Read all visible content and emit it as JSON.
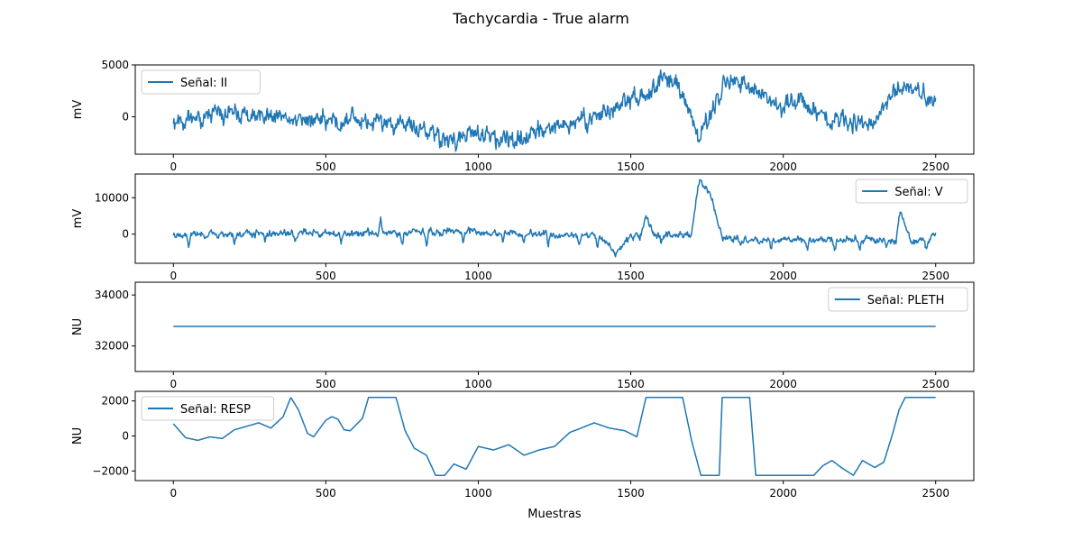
{
  "chart_data": {
    "title": "Tachycardia - True alarm",
    "xlabel": "Muestras",
    "panels": [
      {
        "type": "line",
        "ylabel": "mV",
        "legend": "Señal: II",
        "legend_loc": "upper-left",
        "xlim": [
          -125,
          2625
        ],
        "ylim": [
          -3600,
          5000
        ],
        "xticks": [
          0,
          500,
          1000,
          1500,
          2000,
          2500
        ],
        "yticks": [
          0,
          5000
        ],
        "keypoints": [
          [
            0,
            -300
          ],
          [
            100,
            -100
          ],
          [
            200,
            300
          ],
          [
            300,
            -200
          ],
          [
            400,
            -150
          ],
          [
            500,
            -350
          ],
          [
            600,
            -200
          ],
          [
            700,
            -500
          ],
          [
            800,
            -1200
          ],
          [
            900,
            -2200
          ],
          [
            1000,
            -1700
          ],
          [
            1100,
            -2400
          ],
          [
            1200,
            -1300
          ],
          [
            1300,
            -700
          ],
          [
            1400,
            300
          ],
          [
            1450,
            800
          ],
          [
            1500,
            1500
          ],
          [
            1550,
            2600
          ],
          [
            1600,
            3400
          ],
          [
            1650,
            3700
          ],
          [
            1680,
            1200
          ],
          [
            1720,
            -1800
          ],
          [
            1750,
            -600
          ],
          [
            1800,
            3200
          ],
          [
            1850,
            3300
          ],
          [
            1900,
            2700
          ],
          [
            1960,
            1100
          ],
          [
            2000,
            1100
          ],
          [
            2050,
            1800
          ],
          [
            2100,
            800
          ],
          [
            2150,
            -300
          ],
          [
            2200,
            -500
          ],
          [
            2250,
            -200
          ],
          [
            2300,
            -1000
          ],
          [
            2350,
            2000
          ],
          [
            2400,
            3000
          ],
          [
            2450,
            2500
          ],
          [
            2500,
            2000
          ]
        ],
        "noise_amp": 1200,
        "noise_seed": 11
      },
      {
        "type": "line",
        "ylabel": "mV",
        "legend": "Señal: V",
        "legend_loc": "upper-right",
        "xlim": [
          -125,
          2625
        ],
        "ylim": [
          -8000,
          16500
        ],
        "xticks": [
          0,
          500,
          1000,
          1500,
          2000,
          2500
        ],
        "yticks": [
          0,
          10000
        ],
        "keypoints": [
          [
            0,
            0
          ],
          [
            500,
            200
          ],
          [
            690,
            300
          ],
          [
            1000,
            600
          ],
          [
            1300,
            -200
          ],
          [
            1400,
            -300
          ],
          [
            1450,
            -5200
          ],
          [
            1500,
            -300
          ],
          [
            1530,
            -500
          ],
          [
            1550,
            4500
          ],
          [
            1580,
            -200
          ],
          [
            1700,
            -400
          ],
          [
            1725,
            15000
          ],
          [
            1760,
            11000
          ],
          [
            1800,
            -800
          ],
          [
            1900,
            -1700
          ],
          [
            2000,
            -1400
          ],
          [
            2100,
            -1600
          ],
          [
            2370,
            -1500
          ],
          [
            2385,
            6500
          ],
          [
            2420,
            -2500
          ],
          [
            2500,
            -500
          ]
        ],
        "spikes": [
          [
            50,
            -2800
          ],
          [
            200,
            -2900
          ],
          [
            300,
            -2600
          ],
          [
            400,
            -2700
          ],
          [
            550,
            -2800
          ],
          [
            680,
            4300
          ],
          [
            750,
            -3100
          ],
          [
            830,
            -2800
          ],
          [
            950,
            -2700
          ],
          [
            1080,
            -2900
          ],
          [
            1150,
            -2800
          ],
          [
            1230,
            -3000
          ],
          [
            1330,
            -2500
          ],
          [
            1390,
            -3200
          ],
          [
            1600,
            -1800
          ],
          [
            1860,
            -2400
          ],
          [
            1960,
            -2700
          ],
          [
            2080,
            -2500
          ],
          [
            2170,
            -3000
          ],
          [
            2250,
            -2800
          ],
          [
            2340,
            -2200
          ],
          [
            2470,
            -3100
          ]
        ],
        "noise_amp": 1300,
        "noise_seed": 23
      },
      {
        "type": "line",
        "ylabel": "NU",
        "legend": "Señal: PLETH",
        "legend_loc": "upper-right",
        "xlim": [
          -125,
          2625
        ],
        "ylim": [
          31000,
          34500
        ],
        "xticks": [
          0,
          500,
          1000,
          1500,
          2000,
          2500
        ],
        "yticks": [
          32000,
          34000
        ],
        "keypoints": [
          [
            0,
            32767
          ],
          [
            2500,
            32767
          ]
        ],
        "noise_amp": 0,
        "noise_seed": 1
      },
      {
        "type": "line",
        "ylabel": "NU",
        "legend": "Señal: RESP",
        "legend_loc": "upper-left",
        "xlim": [
          -125,
          2625
        ],
        "ylim": [
          -2550,
          2550
        ],
        "xticks": [
          0,
          500,
          1000,
          1500,
          2000,
          2500
        ],
        "yticks": [
          -2000,
          0,
          2000
        ],
        "keypoints": [
          [
            0,
            700
          ],
          [
            40,
            -100
          ],
          [
            80,
            -250
          ],
          [
            120,
            -50
          ],
          [
            160,
            -150
          ],
          [
            200,
            350
          ],
          [
            240,
            550
          ],
          [
            280,
            750
          ],
          [
            320,
            450
          ],
          [
            360,
            1100
          ],
          [
            385,
            2200
          ],
          [
            410,
            1500
          ],
          [
            440,
            150
          ],
          [
            460,
            -50
          ],
          [
            500,
            900
          ],
          [
            520,
            1100
          ],
          [
            540,
            950
          ],
          [
            560,
            350
          ],
          [
            580,
            300
          ],
          [
            620,
            1000
          ],
          [
            640,
            2200
          ],
          [
            730,
            2200
          ],
          [
            760,
            300
          ],
          [
            790,
            -700
          ],
          [
            830,
            -1100
          ],
          [
            860,
            -2250
          ],
          [
            890,
            -2250
          ],
          [
            920,
            -1600
          ],
          [
            960,
            -1900
          ],
          [
            1000,
            -600
          ],
          [
            1050,
            -800
          ],
          [
            1100,
            -500
          ],
          [
            1150,
            -1100
          ],
          [
            1200,
            -800
          ],
          [
            1250,
            -600
          ],
          [
            1300,
            200
          ],
          [
            1330,
            400
          ],
          [
            1380,
            750
          ],
          [
            1430,
            450
          ],
          [
            1480,
            300
          ],
          [
            1520,
            -50
          ],
          [
            1550,
            2200
          ],
          [
            1670,
            2200
          ],
          [
            1700,
            -300
          ],
          [
            1730,
            -2250
          ],
          [
            1790,
            -2250
          ],
          [
            1800,
            2200
          ],
          [
            1890,
            2200
          ],
          [
            1910,
            -2250
          ],
          [
            2100,
            -2250
          ],
          [
            2130,
            -1700
          ],
          [
            2160,
            -1400
          ],
          [
            2190,
            -1800
          ],
          [
            2230,
            -2250
          ],
          [
            2260,
            -1400
          ],
          [
            2300,
            -1800
          ],
          [
            2330,
            -1500
          ],
          [
            2360,
            200
          ],
          [
            2380,
            1500
          ],
          [
            2400,
            2200
          ],
          [
            2500,
            2200
          ]
        ],
        "noise_amp": 0,
        "noise_seed": 5
      }
    ]
  },
  "colors": {
    "line": "#1f77b4",
    "axis": "#000000",
    "background": "#ffffff",
    "legend_border": "#cccccc"
  }
}
